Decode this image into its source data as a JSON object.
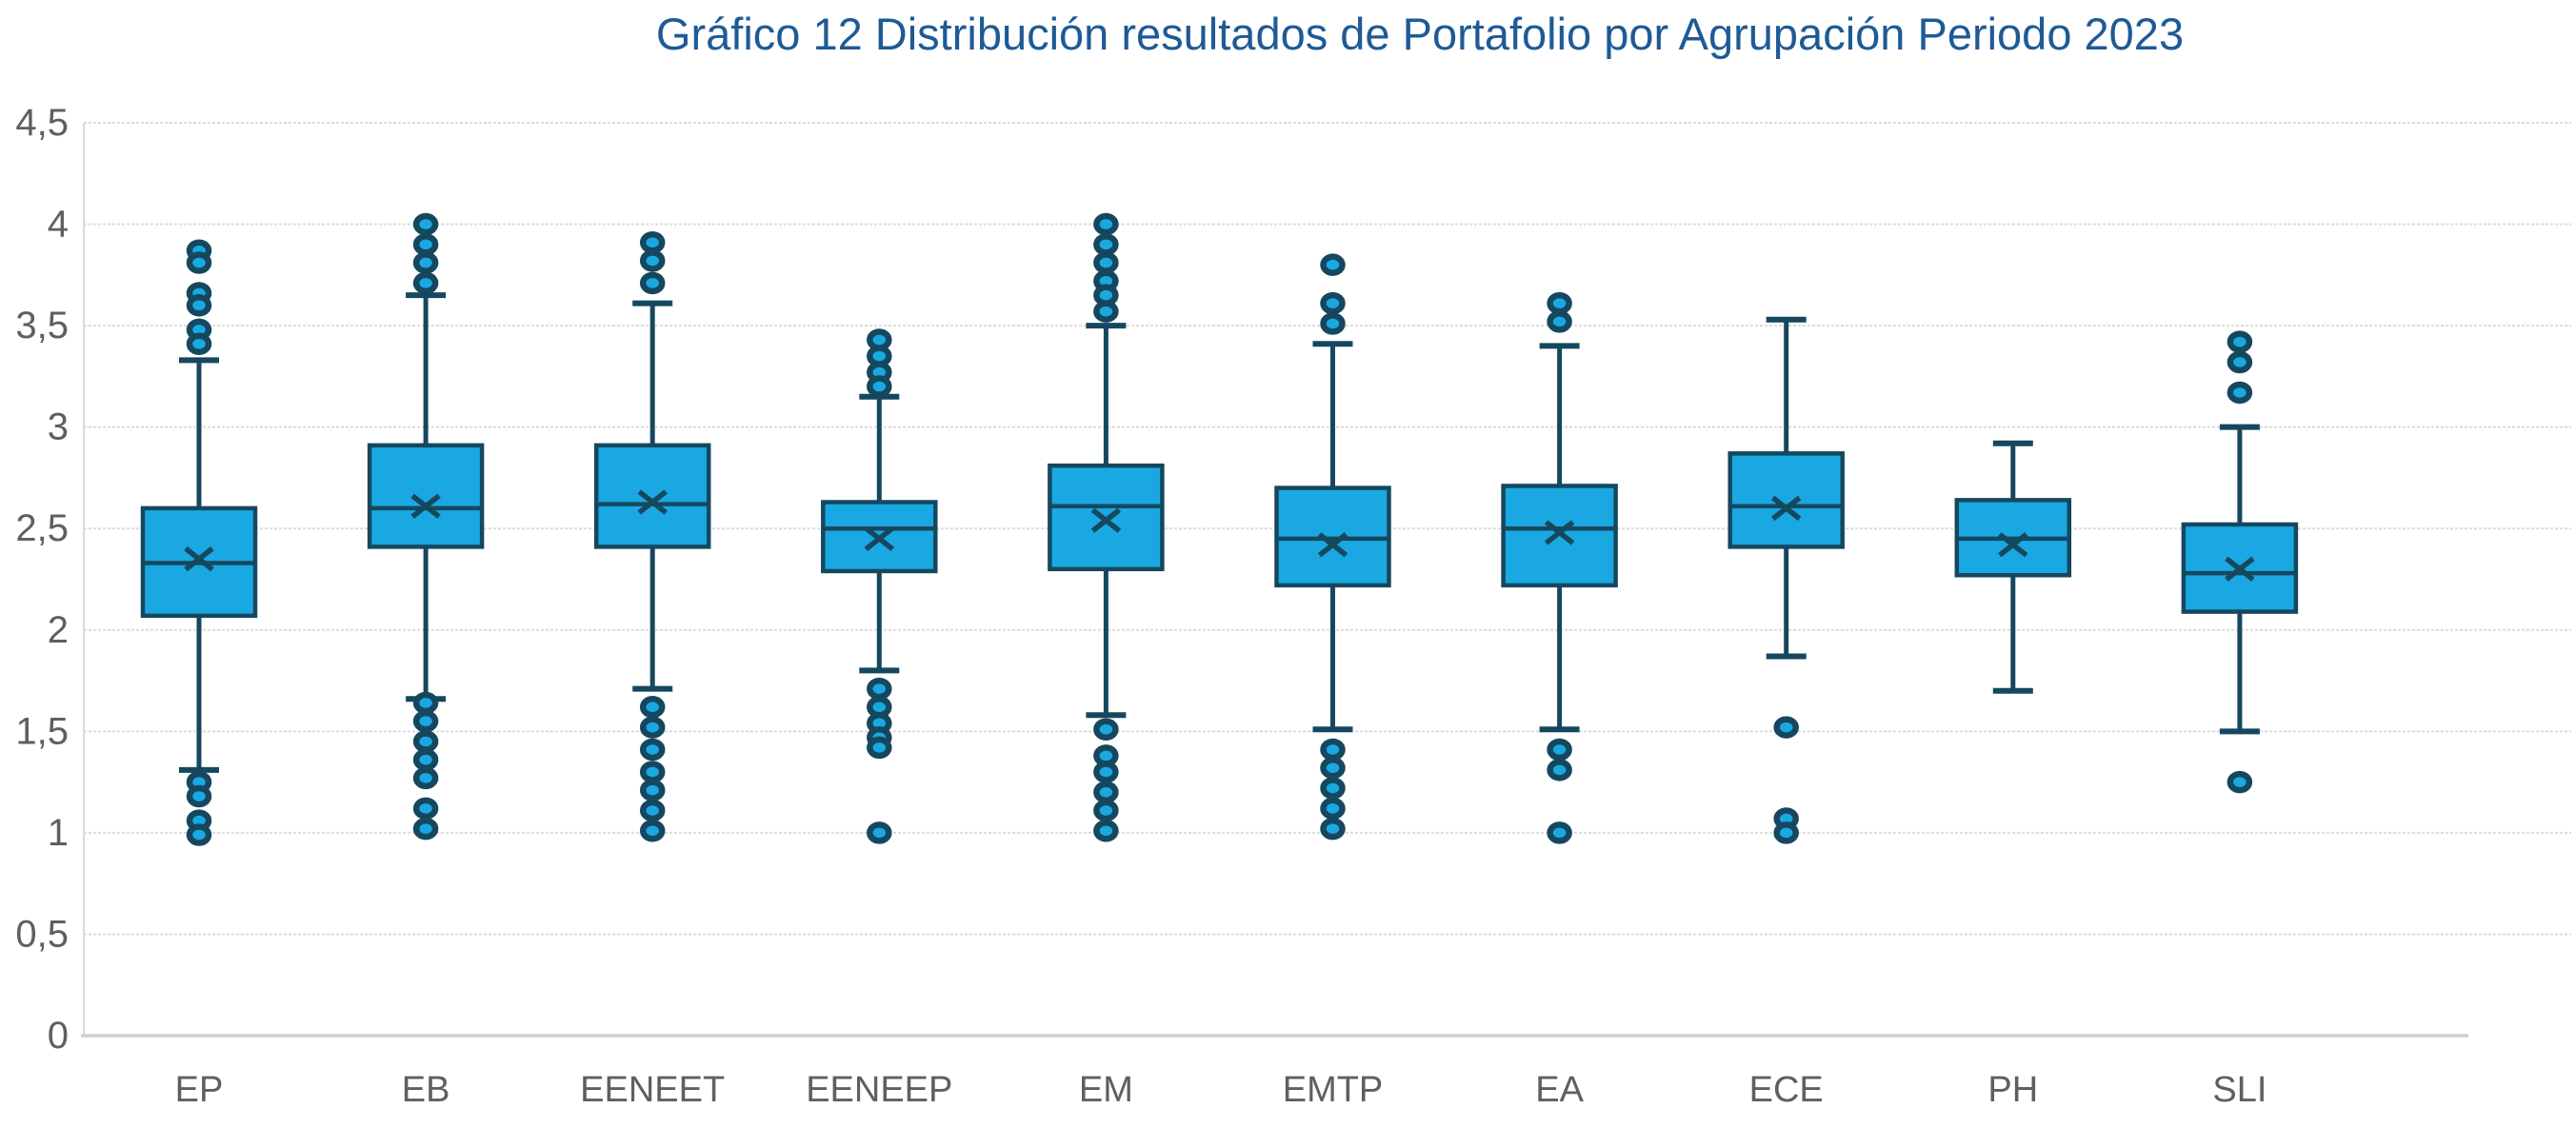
{
  "chart_data": {
    "type": "boxplot",
    "title": "Gráfico 12 Distribución resultados de Portafolio por Agrupación Periodo 2023",
    "categories": [
      "EP",
      "EB",
      "EENEET",
      "EENEEP",
      "EM",
      "EMTP",
      "EA",
      "ECE",
      "PH",
      "SLI"
    ],
    "ylim": [
      0,
      4.5
    ],
    "ytick_step": 0.5,
    "ytick_labels": [
      "0",
      "0,5",
      "1",
      "1,5",
      "2",
      "2,5",
      "3",
      "3,5",
      "4",
      "4,5"
    ],
    "grid": true,
    "legend": "none",
    "series": [
      {
        "name": "EP",
        "q1": 2.07,
        "median": 2.33,
        "q3": 2.6,
        "mean": 2.35,
        "whisker_low": 1.31,
        "whisker_high": 3.33,
        "outliers": [
          3.87,
          3.81,
          3.66,
          3.6,
          3.48,
          3.41,
          1.25,
          1.18,
          1.06,
          0.99
        ]
      },
      {
        "name": "EB",
        "q1": 2.41,
        "median": 2.6,
        "q3": 2.91,
        "mean": 2.61,
        "whisker_low": 1.66,
        "whisker_high": 3.65,
        "outliers": [
          4.0,
          3.9,
          3.81,
          3.71,
          1.64,
          1.55,
          1.45,
          1.36,
          1.27,
          1.12,
          1.02
        ]
      },
      {
        "name": "EENEET",
        "q1": 2.41,
        "median": 2.62,
        "q3": 2.91,
        "mean": 2.63,
        "whisker_low": 1.71,
        "whisker_high": 3.61,
        "outliers": [
          3.91,
          3.82,
          3.71,
          1.62,
          1.52,
          1.41,
          1.3,
          1.21,
          1.11,
          1.01
        ]
      },
      {
        "name": "EENEEP",
        "q1": 2.29,
        "median": 2.5,
        "q3": 2.63,
        "mean": 2.45,
        "whisker_low": 1.8,
        "whisker_high": 3.15,
        "outliers": [
          3.43,
          3.35,
          3.27,
          3.2,
          1.71,
          1.62,
          1.54,
          1.47,
          1.42,
          1.0
        ]
      },
      {
        "name": "EM",
        "q1": 2.3,
        "median": 2.61,
        "q3": 2.81,
        "mean": 2.54,
        "whisker_low": 1.58,
        "whisker_high": 3.5,
        "outliers": [
          4.0,
          3.9,
          3.81,
          3.72,
          3.65,
          3.57,
          1.51,
          1.38,
          1.3,
          1.2,
          1.11,
          1.01
        ]
      },
      {
        "name": "EMTP",
        "q1": 2.22,
        "median": 2.45,
        "q3": 2.7,
        "mean": 2.42,
        "whisker_low": 1.51,
        "whisker_high": 3.41,
        "outliers": [
          3.8,
          3.61,
          3.51,
          1.41,
          1.32,
          1.22,
          1.12,
          1.02
        ]
      },
      {
        "name": "EA",
        "q1": 2.22,
        "median": 2.5,
        "q3": 2.71,
        "mean": 2.48,
        "whisker_low": 1.51,
        "whisker_high": 3.4,
        "outliers": [
          3.61,
          3.52,
          1.41,
          1.31,
          1.0
        ]
      },
      {
        "name": "ECE",
        "q1": 2.41,
        "median": 2.61,
        "q3": 2.87,
        "mean": 2.6,
        "whisker_low": 1.87,
        "whisker_high": 3.53,
        "outliers": [
          1.52,
          1.07,
          1.0
        ]
      },
      {
        "name": "PH",
        "q1": 2.27,
        "median": 2.45,
        "q3": 2.64,
        "mean": 2.42,
        "whisker_low": 1.7,
        "whisker_high": 2.92,
        "outliers": []
      },
      {
        "name": "SLI",
        "q1": 2.09,
        "median": 2.28,
        "q3": 2.52,
        "mean": 2.3,
        "whisker_low": 1.5,
        "whisker_high": 3.0,
        "outliers": [
          3.42,
          3.32,
          3.17,
          1.25
        ]
      }
    ],
    "colors": {
      "box_fill": "#1AA8E2",
      "box_border": "#15485F",
      "outlier_fill": "#1AA8E2",
      "outlier_ring": "#15485F",
      "gridline": "#DBDBDB",
      "axis_line": "#CFCDCD",
      "tick_label": "#5F5F5F",
      "title": "#1E5A96",
      "background": "#FFFFFF"
    }
  }
}
